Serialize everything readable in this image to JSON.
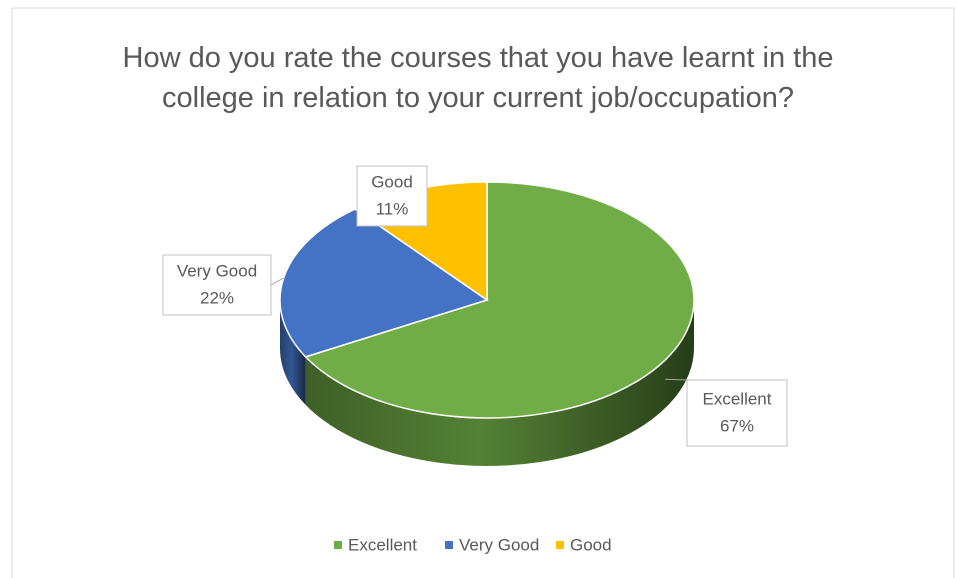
{
  "chart_data": {
    "type": "pie3d",
    "title": "How do you rate the courses that you have learnt in the college in relation to your current job/occupation?",
    "categories": [
      "Excellent",
      "Very Good",
      "Good"
    ],
    "values": [
      67,
      22,
      11
    ],
    "value_labels": [
      "67%",
      "22%",
      "11%"
    ],
    "colors": [
      "#70ad47",
      "#4472c4",
      "#ffc000"
    ],
    "legend": "bottom"
  }
}
